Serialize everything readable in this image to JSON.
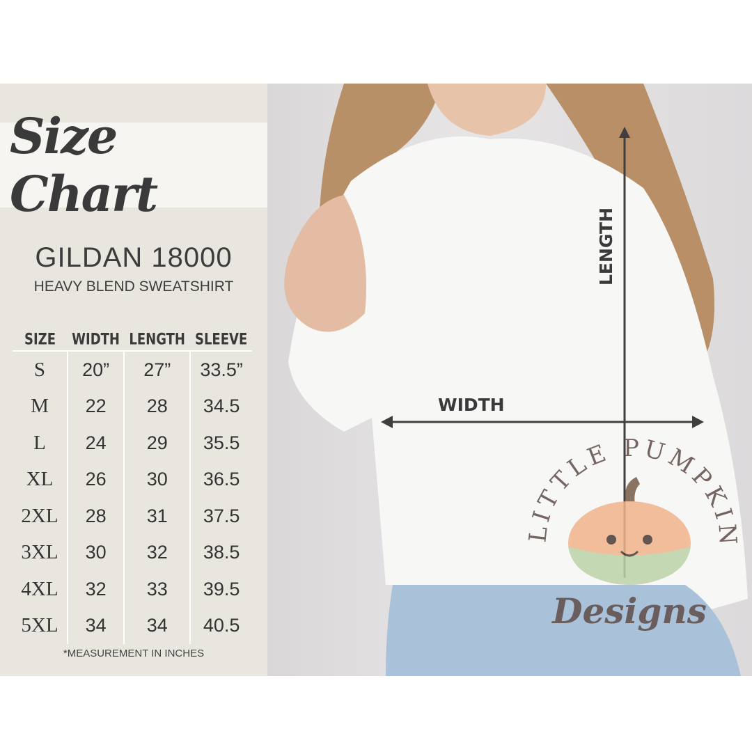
{
  "header": {
    "title": "Size Chart",
    "model": "GILDAN 18000",
    "subtitle": "HEAVY BLEND SWEATSHIRT"
  },
  "table": {
    "columns": [
      "SIZE",
      "WIDTH",
      "LENGTH",
      "SLEEVE"
    ],
    "rows": [
      [
        "S",
        "20”",
        "27”",
        "33.5”"
      ],
      [
        "M",
        "22",
        "28",
        "34.5"
      ],
      [
        "L",
        "24",
        "29",
        "35.5"
      ],
      [
        "XL",
        "26",
        "30",
        "36.5"
      ],
      [
        "2XL",
        "28",
        "31",
        "37.5"
      ],
      [
        "3XL",
        "30",
        "32",
        "38.5"
      ],
      [
        "4XL",
        "32",
        "33",
        "39.5"
      ],
      [
        "5XL",
        "34",
        "34",
        "40.5"
      ]
    ]
  },
  "note": "*MEASUREMENT IN INCHES",
  "photo": {
    "length_label": "LENGTH",
    "width_label": "WIDTH"
  },
  "watermark": {
    "arc_text": "LITTLE PUMPKIN",
    "script_text": "Designs"
  },
  "colors": {
    "panel": "#e9e6e0",
    "text": "#3a3a3a",
    "arrow": "#3f3f3f",
    "logo_text": "#5e4c48"
  }
}
